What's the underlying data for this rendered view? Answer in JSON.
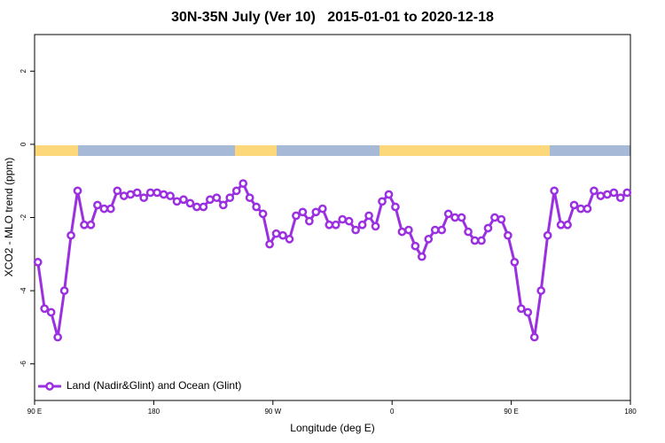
{
  "chart_data": {
    "type": "line",
    "title": "30N-35N July (Ver 10)   2015-01-01 to 2020-12-18",
    "x_label": "Longitude (deg E)",
    "y_label": "XCO2 - MLO trend (ppm)",
    "x": [
      92.5,
      97.5,
      102.5,
      107.5,
      112.5,
      117.5,
      122.5,
      127.5,
      132.5,
      137.5,
      142.5,
      147.5,
      152.5,
      157.5,
      162.5,
      167.5,
      172.5,
      177.5,
      182.5,
      187.5,
      192.5,
      197.5,
      202.5,
      207.5,
      212.5,
      217.5,
      222.5,
      227.5,
      232.5,
      237.5,
      242.5,
      247.5,
      252.5,
      257.5,
      262.5,
      267.5,
      272.5,
      277.5,
      282.5,
      287.5,
      292.5,
      297.5,
      302.5,
      307.5,
      312.5,
      317.5,
      322.5,
      327.5,
      332.5,
      337.5,
      342.5,
      347.5,
      352.5,
      357.5,
      362.5,
      367.5,
      372.5,
      377.5,
      382.5,
      387.5,
      392.5,
      397.5,
      402.5,
      407.5,
      412.5,
      417.5,
      422.5,
      427.5,
      432.5,
      437.5,
      442.5,
      447.5,
      452.5,
      457.5,
      462.5,
      467.5,
      472.5,
      477.5,
      482.5,
      487.5,
      492.5,
      497.5,
      502.5,
      507.5,
      512.5,
      517.5,
      522.5,
      527.5,
      532.5,
      537.5
    ],
    "series": [
      {
        "name": "Land (Nadir&Glint) and Ocean (Glint)",
        "color": "#9b30e0",
        "values": [
          -3.22,
          -4.49,
          -4.59,
          -5.27,
          -4.0,
          -2.49,
          -1.27,
          -2.2,
          -2.2,
          -1.66,
          -1.76,
          -1.76,
          -1.27,
          -1.41,
          -1.37,
          -1.32,
          -1.46,
          -1.32,
          -1.32,
          -1.37,
          -1.41,
          -1.56,
          -1.51,
          -1.61,
          -1.71,
          -1.71,
          -1.51,
          -1.46,
          -1.66,
          -1.46,
          -1.27,
          -1.07,
          -1.46,
          -1.71,
          -1.9,
          -2.73,
          -2.44,
          -2.49,
          -2.59,
          -1.95,
          -1.85,
          -2.1,
          -1.85,
          -1.76,
          -2.2,
          -2.2,
          -2.05,
          -2.1,
          -2.34,
          -2.2,
          -1.95,
          -2.24,
          -1.56,
          -1.37,
          -1.71,
          -2.39,
          -2.34,
          -2.78,
          -3.07,
          -2.59,
          -2.34,
          -2.34,
          -1.9,
          -2.0,
          -2.0,
          -2.39,
          -2.63,
          -2.63,
          -2.29,
          -2.0,
          -2.05,
          -2.49,
          -3.22,
          -4.49,
          -4.59,
          -5.27,
          -4.0,
          -2.49,
          -1.27,
          -2.2,
          -2.2,
          -1.66,
          -1.76,
          -1.76,
          -1.27,
          -1.41,
          -1.37,
          -1.32,
          -1.46,
          -1.32
        ]
      }
    ],
    "xlim": [
      90,
      540
    ],
    "xticks": [
      {
        "value": 90,
        "label": "90 E"
      },
      180,
      {
        "value": 270,
        "label": "90 W"
      },
      {
        "value": 360,
        "label": "0"
      },
      {
        "value": 450,
        "label": "90 E"
      },
      {
        "value": 540,
        "label": "180"
      }
    ],
    "ylim": [
      -7,
      3
    ],
    "yticks": [
      -6,
      -4,
      -2,
      0,
      2
    ],
    "legend": "bottom-left"
  }
}
